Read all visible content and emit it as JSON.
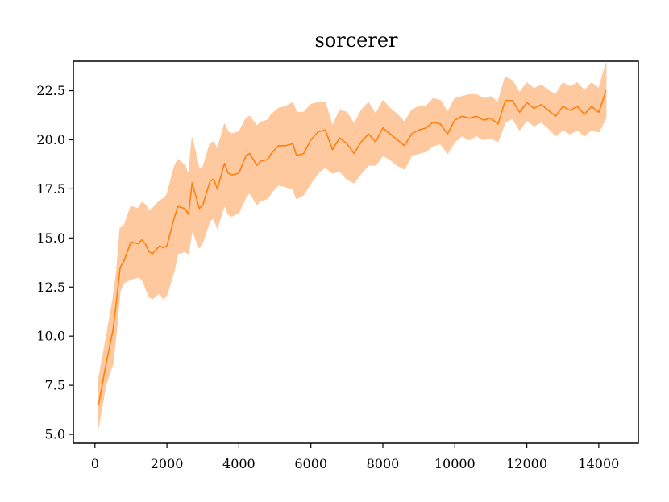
{
  "chart_data": {
    "type": "line",
    "title": "sorcerer",
    "xlabel": "",
    "ylabel": "",
    "xlim": [
      -600,
      15100
    ],
    "ylim": [
      4.55,
      24.0
    ],
    "xticks": [
      0,
      2000,
      4000,
      6000,
      8000,
      10000,
      12000,
      14000
    ],
    "xtick_labels": [
      "0",
      "2000",
      "4000",
      "6000",
      "8000",
      "10000",
      "12000",
      "14000"
    ],
    "yticks": [
      5.0,
      7.5,
      10.0,
      12.5,
      15.0,
      17.5,
      20.0,
      22.5
    ],
    "ytick_labels": [
      "5.0",
      "7.5",
      "10.0",
      "12.5",
      "15.0",
      "17.5",
      "20.0",
      "22.5"
    ],
    "grid": false,
    "line_color": "#ff7f0e",
    "band_color": "#ffc9a0",
    "series": [
      {
        "x": [
          100,
          300,
          500,
          600,
          700,
          800,
          1000,
          1200,
          1300,
          1400,
          1500,
          1600,
          1800,
          1900,
          2000,
          2200,
          2300,
          2500,
          2600,
          2700,
          2900,
          3000,
          3200,
          3300,
          3400,
          3600,
          3700,
          3800,
          4000,
          4200,
          4300,
          4500,
          4600,
          4800,
          4900,
          5100,
          5300,
          5500,
          5600,
          5800,
          6000,
          6200,
          6400,
          6600,
          6800,
          7000,
          7200,
          7400,
          7600,
          7800,
          8000,
          8200,
          8400,
          8600,
          8800,
          9000,
          9200,
          9400,
          9600,
          9800,
          10000,
          10200,
          10400,
          10600,
          10800,
          11000,
          11200,
          11400,
          11600,
          11800,
          12000,
          12200,
          12400,
          12600,
          12800,
          13000,
          13200,
          13400,
          13600,
          13800,
          14000,
          14200
        ],
        "y": [
          6.5,
          8.5,
          10.3,
          11.8,
          13.5,
          13.8,
          14.8,
          14.7,
          14.9,
          14.7,
          14.3,
          14.2,
          14.6,
          14.5,
          14.6,
          16.0,
          16.6,
          16.5,
          16.2,
          17.8,
          16.5,
          16.7,
          17.9,
          18.0,
          17.5,
          18.8,
          18.3,
          18.2,
          18.3,
          19.2,
          19.3,
          18.7,
          18.9,
          19.0,
          19.3,
          19.7,
          19.7,
          19.8,
          19.2,
          19.3,
          20.0,
          20.4,
          20.5,
          19.5,
          20.1,
          19.8,
          19.3,
          19.9,
          20.3,
          19.9,
          20.6,
          20.3,
          20.0,
          19.7,
          20.3,
          20.5,
          20.6,
          20.9,
          20.8,
          20.3,
          21.0,
          21.2,
          21.1,
          21.2,
          21.0,
          21.1,
          20.8,
          22.0,
          22.0,
          21.4,
          21.9,
          21.6,
          21.8,
          21.5,
          21.2,
          21.7,
          21.5,
          21.7,
          21.3,
          21.7,
          21.4,
          22.5
        ],
        "y_lower": [
          5.4,
          7.5,
          8.6,
          10.3,
          12.3,
          12.7,
          12.9,
          13.0,
          12.9,
          12.5,
          12.0,
          11.9,
          12.2,
          11.9,
          12.1,
          13.3,
          14.2,
          14.3,
          14.2,
          15.4,
          14.5,
          14.8,
          15.9,
          16.0,
          15.5,
          16.7,
          16.2,
          16.1,
          16.3,
          17.1,
          17.3,
          16.7,
          16.9,
          17.0,
          17.3,
          17.7,
          17.6,
          17.5,
          17.0,
          17.2,
          17.8,
          18.3,
          18.6,
          18.3,
          18.4,
          18.0,
          17.8,
          18.3,
          18.7,
          18.7,
          19.2,
          19.0,
          18.7,
          18.5,
          19.2,
          19.3,
          19.4,
          19.7,
          19.8,
          19.3,
          19.9,
          20.2,
          20.0,
          20.2,
          20.0,
          20.1,
          19.9,
          20.9,
          21.1,
          20.5,
          21.0,
          20.7,
          20.9,
          20.6,
          20.2,
          20.5,
          20.3,
          20.5,
          20.2,
          20.5,
          20.4,
          21.1
        ],
        "y_upper": [
          7.8,
          9.8,
          11.9,
          13.3,
          15.5,
          15.6,
          16.6,
          16.5,
          16.8,
          16.7,
          16.4,
          16.5,
          16.9,
          17.0,
          17.2,
          18.6,
          19.0,
          18.7,
          18.2,
          20.1,
          18.5,
          18.6,
          19.8,
          19.9,
          19.5,
          20.8,
          20.4,
          20.3,
          20.4,
          21.1,
          21.2,
          20.7,
          20.9,
          21.0,
          21.3,
          21.6,
          21.7,
          21.9,
          21.4,
          21.4,
          21.8,
          21.9,
          21.9,
          20.7,
          21.5,
          21.4,
          20.8,
          21.5,
          21.9,
          21.3,
          22.0,
          21.6,
          21.3,
          20.9,
          21.5,
          21.7,
          21.7,
          22.1,
          22.0,
          21.4,
          22.1,
          22.2,
          22.3,
          22.3,
          22.1,
          22.2,
          21.9,
          23.2,
          23.0,
          22.4,
          22.9,
          22.6,
          22.8,
          22.5,
          22.3,
          22.9,
          22.7,
          22.9,
          22.5,
          22.9,
          22.6,
          23.9
        ]
      }
    ]
  }
}
